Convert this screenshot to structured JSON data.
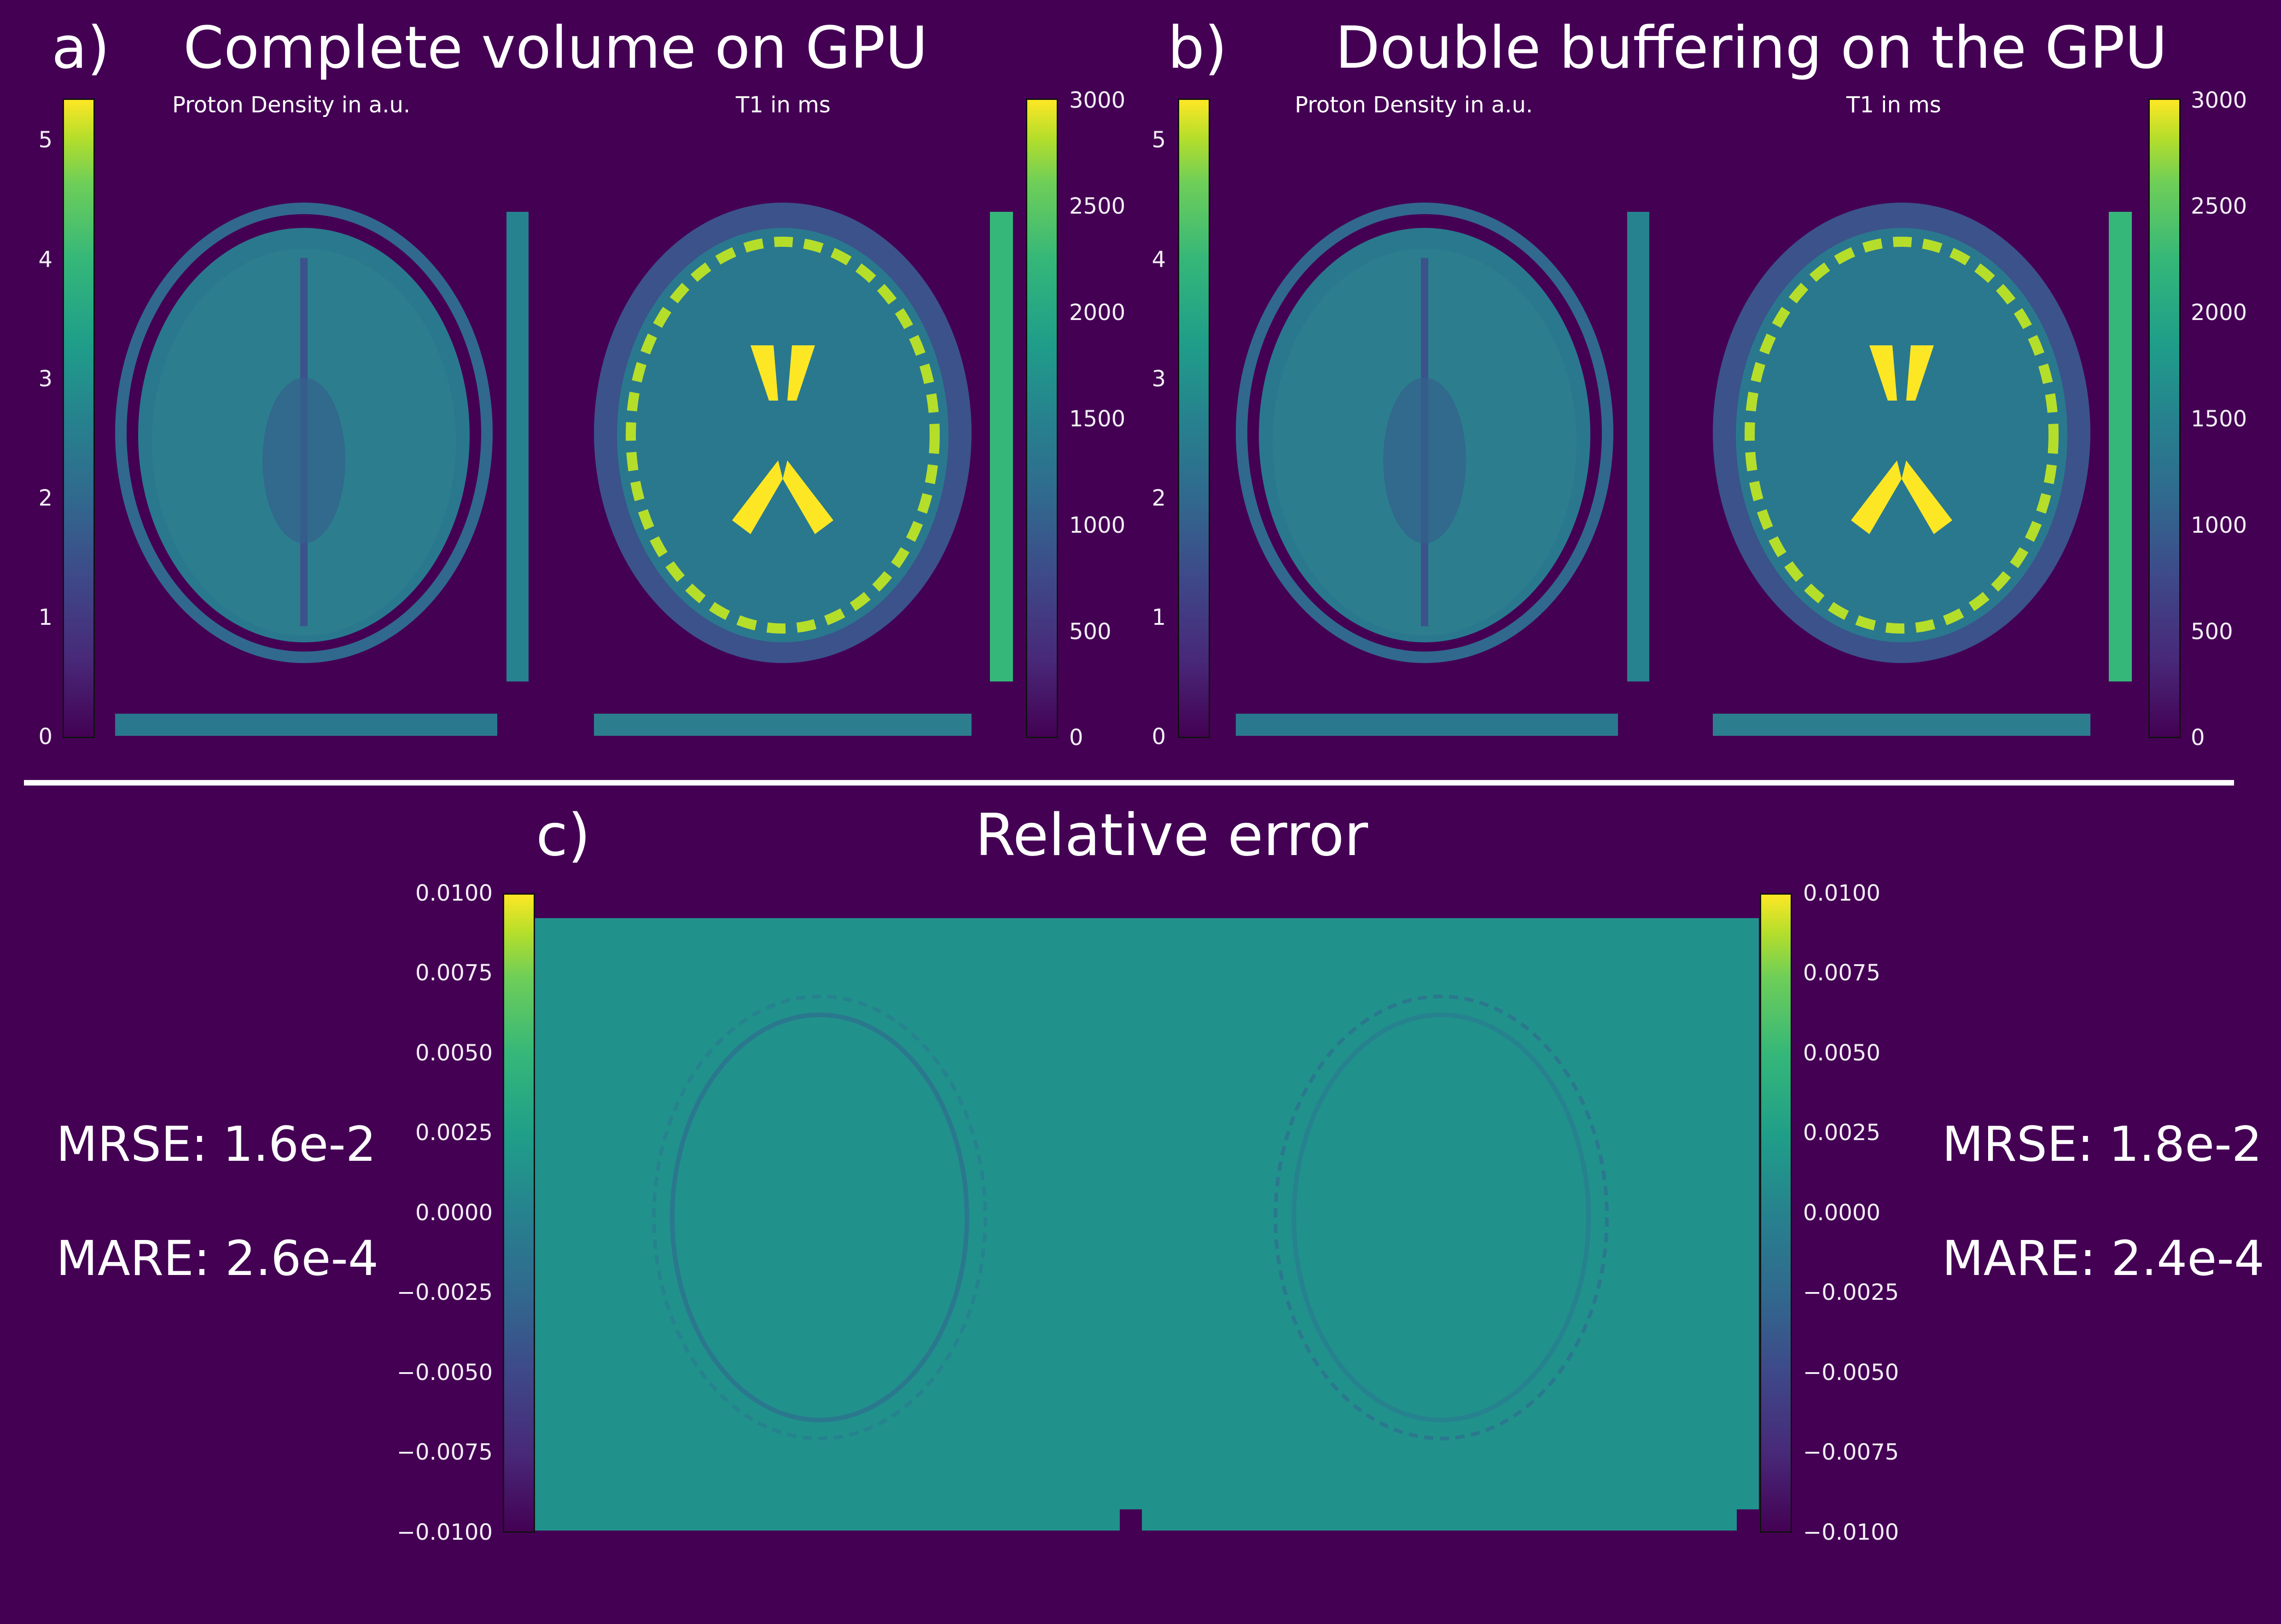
{
  "panel_a": {
    "letter": "a)",
    "title": "Complete volume on GPU",
    "pd_label": "Proton Density in a.u.",
    "t1_label": "T1 in  ms"
  },
  "panel_b": {
    "letter": "b)",
    "title": "Double buffering on the GPU",
    "pd_label": "Proton Density in a.u.",
    "t1_label": "T1 in  ms"
  },
  "panel_c": {
    "letter": "c)",
    "title": "Relative error",
    "left_stats": {
      "mrse": "MRSE: 1.6e-2",
      "mare": "MARE: 2.6e-4"
    },
    "right_stats": {
      "mrse": "MRSE: 1.8e-2",
      "mare": "MARE: 2.4e-4"
    }
  },
  "colorbars": {
    "pd_ticks": [
      "5",
      "4",
      "3",
      "2",
      "1",
      "0"
    ],
    "t1_ticks": [
      "3000",
      "2500",
      "2000",
      "1500",
      "1000",
      "500",
      "0"
    ],
    "error_ticks": [
      "0.0100",
      "0.0075",
      "0.0050",
      "0.0025",
      "0.0000",
      "−0.0025",
      "−0.0050",
      "−0.0075",
      "−0.0100"
    ],
    "pd_range": [
      0,
      5.35
    ],
    "t1_range": [
      0,
      3000
    ],
    "error_range": [
      -0.01,
      0.01
    ],
    "colormap": "viridis"
  },
  "colors": {
    "background": "#440154",
    "error_field": "#21918c",
    "brain_dark": "#3b528b",
    "brain_mid": "#2a788e",
    "csf": "#fde725",
    "text": "#ffffff"
  }
}
